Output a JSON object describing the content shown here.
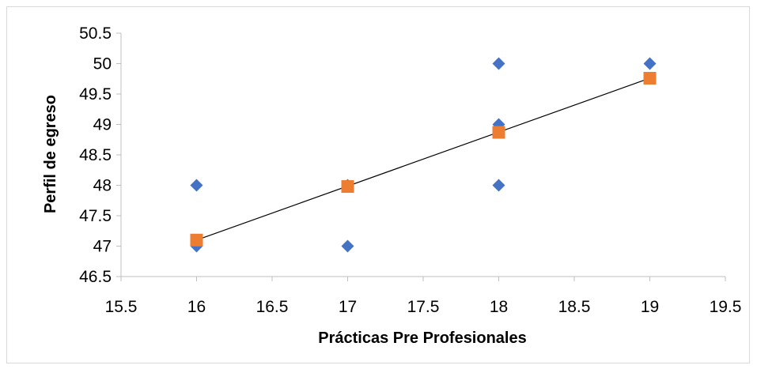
{
  "chart_data": {
    "type": "scatter",
    "title": "",
    "xlabel": "Prácticas Pre Profesionales",
    "ylabel": "Perfil de egreso",
    "xlim": [
      15.5,
      19.5
    ],
    "ylim": [
      46.5,
      50.5
    ],
    "x_ticks": [
      "15.5",
      "16",
      "16.5",
      "17",
      "17.5",
      "18",
      "18.5",
      "19",
      "19.5"
    ],
    "y_ticks": [
      "46.5",
      "47",
      "47.5",
      "48",
      "48.5",
      "49",
      "49.5",
      "50",
      "50.5"
    ],
    "grid": false,
    "legend": "none",
    "series": [
      {
        "marker": "diamond",
        "color": "#4472C4",
        "points": [
          [
            16,
            48
          ],
          [
            16,
            47
          ],
          [
            17,
            47
          ],
          [
            17,
            48
          ],
          [
            18,
            50
          ],
          [
            18,
            49
          ],
          [
            18,
            48
          ],
          [
            19,
            50
          ]
        ]
      },
      {
        "marker": "square",
        "color": "#ED7D31",
        "points": [
          [
            16,
            47.1
          ],
          [
            17,
            47.98
          ],
          [
            18,
            48.87
          ],
          [
            19,
            49.76
          ]
        ]
      }
    ],
    "trendline": {
      "color": "#000000",
      "from": [
        16,
        47.1
      ],
      "to": [
        19,
        49.76
      ]
    }
  }
}
